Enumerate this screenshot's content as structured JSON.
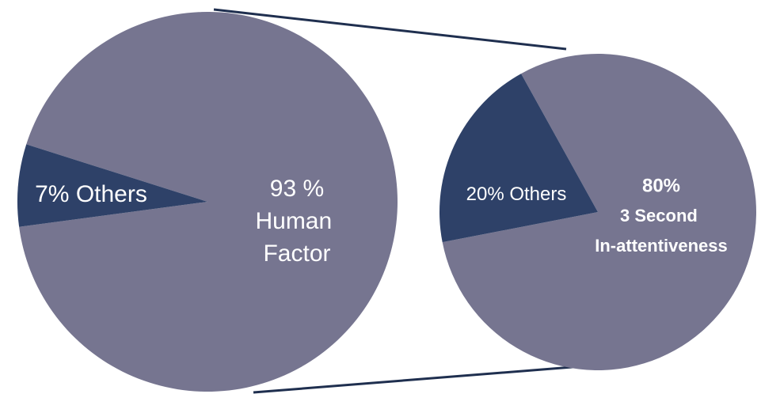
{
  "chart_data": [
    {
      "type": "pie",
      "categories": [
        "Human Factor",
        "Others"
      ],
      "values": [
        93,
        7
      ],
      "value_labels": [
        "93 %",
        "7%"
      ],
      "colors": [
        "#767590",
        "#2e4168"
      ]
    },
    {
      "type": "pie",
      "categories": [
        "3 Second In-attentiveness",
        "Others"
      ],
      "values": [
        80,
        20
      ],
      "value_labels": [
        "80%",
        "20%"
      ],
      "colors": [
        "#767590",
        "#2e4168"
      ]
    }
  ]
}
